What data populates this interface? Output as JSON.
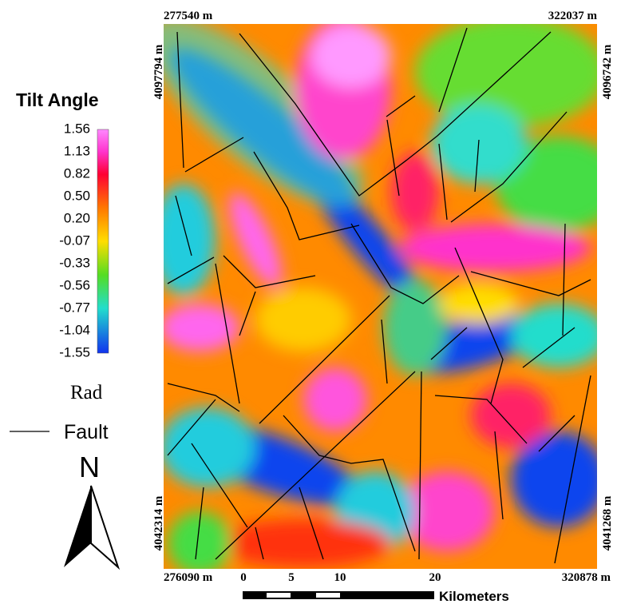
{
  "map": {
    "corners": {
      "top_left": "277540 m",
      "top_right": "322037 m",
      "left_top": "4097794 m",
      "right_top": "4096742 m",
      "left_bottom": "4042314 m",
      "right_bottom": "4041268 m",
      "bottom_left": "276090 m",
      "bottom_right": "320878 m"
    },
    "legend": {
      "title": "Tilt Angle",
      "ticks": [
        "1.56",
        "1.13",
        "0.82",
        "0.50",
        "0.20",
        "-0.07",
        "-0.33",
        "-0.56",
        "-0.77",
        "-1.04",
        "-1.55"
      ],
      "unit": "Rad",
      "fault": "Fault"
    },
    "north": "N",
    "scale_bar": {
      "labels": [
        "0",
        "5",
        "10",
        "20"
      ],
      "unit": "Kilometers"
    }
  }
}
